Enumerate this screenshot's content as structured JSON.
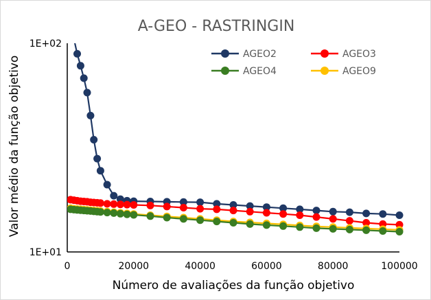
{
  "chart_data": {
    "type": "line",
    "title": "A-GEO - RASTRINGIN",
    "xlabel": "Número de avaliações da função objetivo",
    "ylabel": "Valor médio da função objetivo",
    "xlim": [
      0,
      100000
    ],
    "ylim": [
      10,
      100
    ],
    "yscale": "log",
    "x_ticks": [
      0,
      20000,
      40000,
      60000,
      80000,
      100000
    ],
    "x_tick_labels": [
      "0",
      "20000",
      "40000",
      "60000",
      "80000",
      "100000"
    ],
    "y_ticks": [
      10,
      100
    ],
    "y_tick_labels": [
      "1E+01",
      "1E+02"
    ],
    "grid": false,
    "legend_position": "top-right",
    "series": [
      {
        "name": "AGEO2",
        "color": "#1f3864",
        "x": [
          2000,
          3000,
          4000,
          5000,
          6000,
          7000,
          8000,
          9000,
          10000,
          12000,
          14000,
          16000,
          18000,
          20000,
          25000,
          30000,
          35000,
          40000,
          45000,
          50000,
          55000,
          60000,
          65000,
          70000,
          75000,
          80000,
          85000,
          90000,
          95000,
          100000
        ],
        "y": [
          105,
          89,
          78,
          68,
          58,
          45,
          34.5,
          28,
          24.5,
          21,
          18.6,
          17.9,
          17.6,
          17.5,
          17.45,
          17.4,
          17.35,
          17.3,
          17,
          16.8,
          16.6,
          16.4,
          16.2,
          16,
          15.8,
          15.6,
          15.5,
          15.3,
          15.2,
          15
        ]
      },
      {
        "name": "AGEO3",
        "color": "#ff0000",
        "x": [
          1000,
          2000,
          3000,
          4000,
          5000,
          6000,
          7000,
          8000,
          9000,
          10000,
          12000,
          14000,
          16000,
          18000,
          20000,
          25000,
          30000,
          35000,
          40000,
          45000,
          50000,
          55000,
          60000,
          65000,
          70000,
          75000,
          80000,
          85000,
          90000,
          95000,
          100000
        ],
        "y": [
          17.8,
          17.7,
          17.6,
          17.5,
          17.45,
          17.4,
          17.3,
          17.25,
          17.2,
          17.15,
          17,
          16.95,
          16.9,
          16.85,
          16.8,
          16.7,
          16.5,
          16.3,
          16.1,
          16,
          15.8,
          15.6,
          15.4,
          15.2,
          15,
          14.7,
          14.4,
          14.1,
          13.8,
          13.6,
          13.5
        ]
      },
      {
        "name": "AGEO4",
        "color": "#3a7d22",
        "x": [
          1000,
          2000,
          3000,
          4000,
          5000,
          6000,
          7000,
          8000,
          9000,
          10000,
          12000,
          14000,
          16000,
          18000,
          20000,
          25000,
          30000,
          35000,
          40000,
          45000,
          50000,
          55000,
          60000,
          65000,
          70000,
          75000,
          80000,
          85000,
          90000,
          95000,
          100000
        ],
        "y": [
          16,
          15.95,
          15.9,
          15.85,
          15.8,
          15.75,
          15.7,
          15.65,
          15.6,
          15.55,
          15.45,
          15.35,
          15.25,
          15.15,
          15.05,
          14.85,
          14.6,
          14.4,
          14.2,
          14,
          13.8,
          13.6,
          13.45,
          13.3,
          13.15,
          13,
          12.9,
          12.8,
          12.7,
          12.6,
          12.5
        ]
      },
      {
        "name": "AGEO9",
        "color": "#ffc000",
        "x": [
          1000,
          2000,
          3000,
          4000,
          5000,
          6000,
          7000,
          8000,
          9000,
          10000,
          12000,
          14000,
          16000,
          18000,
          20000,
          25000,
          30000,
          35000,
          40000,
          45000,
          50000,
          55000,
          60000,
          65000,
          70000,
          75000,
          80000,
          85000,
          90000,
          95000,
          100000
        ],
        "y": [
          16.2,
          16.1,
          16.05,
          16,
          15.95,
          15.9,
          15.85,
          15.8,
          15.75,
          15.7,
          15.6,
          15.5,
          15.4,
          15.3,
          15.2,
          15,
          14.8,
          14.6,
          14.4,
          14.2,
          14,
          13.85,
          13.7,
          13.55,
          13.4,
          13.25,
          13.15,
          13.05,
          12.95,
          12.85,
          12.75
        ]
      }
    ]
  }
}
